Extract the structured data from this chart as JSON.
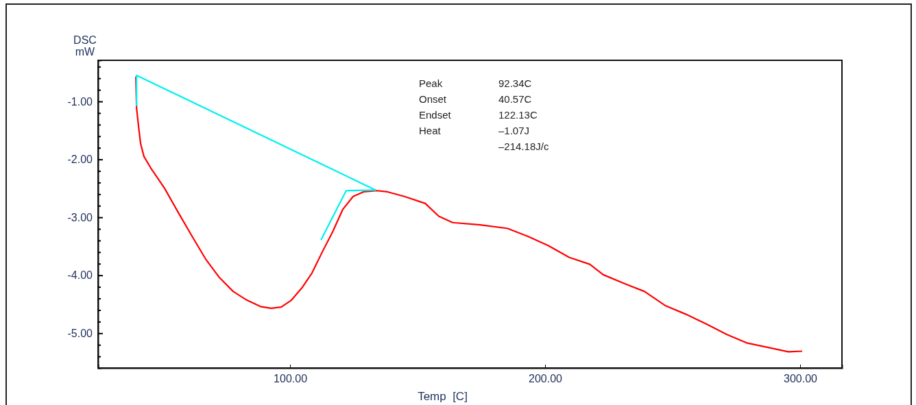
{
  "chart_data": {
    "type": "line",
    "xlabel": "Temp  [C]",
    "ylabel": "DSC\nmW",
    "xlim": [
      24.7,
      316.4
    ],
    "ylim": [
      -5.6,
      -0.29
    ],
    "xticks": [
      {
        "value": 100,
        "label": "100.00"
      },
      {
        "value": 200,
        "label": "200.00"
      },
      {
        "value": 300,
        "label": "300.00"
      }
    ],
    "yticks": [
      {
        "value": -0.4,
        "label": null
      },
      {
        "value": -0.6,
        "label": null
      },
      {
        "value": -0.8,
        "label": null
      },
      {
        "value": -1,
        "label": "-1.00"
      },
      {
        "value": -1.2,
        "label": null
      },
      {
        "value": -1.4,
        "label": null
      },
      {
        "value": -1.6,
        "label": null
      },
      {
        "value": -1.8,
        "label": null
      },
      {
        "value": -2,
        "label": "-2.00"
      },
      {
        "value": -2.2,
        "label": null
      },
      {
        "value": -2.4,
        "label": null
      },
      {
        "value": -2.6,
        "label": null
      },
      {
        "value": -2.8,
        "label": null
      },
      {
        "value": -3,
        "label": "-3.00"
      },
      {
        "value": -3.2,
        "label": null
      },
      {
        "value": -3.4,
        "label": null
      },
      {
        "value": -3.6,
        "label": null
      },
      {
        "value": -3.8,
        "label": null
      },
      {
        "value": -4,
        "label": "-4.00"
      },
      {
        "value": -4.2,
        "label": null
      },
      {
        "value": -4.4,
        "label": null
      },
      {
        "value": -4.6,
        "label": null
      },
      {
        "value": -4.8,
        "label": null
      },
      {
        "value": -5,
        "label": "-5.00"
      },
      {
        "value": -5.2,
        "label": null
      },
      {
        "value": -5.4,
        "label": null
      }
    ],
    "annotations": [
      "Peak",
      "Onset",
      "Endset",
      "Heat",
      "92.34C",
      "40.57C",
      "122.13C",
      "–1.07J",
      "–214.18J/c"
    ],
    "grid": false,
    "marker": "none",
    "line_style": "solid",
    "series": [
      {
        "color": "#ff0000",
        "x": [
          39.5,
          39.6,
          39.8,
          40.6,
          41.4,
          42.7,
          45.4,
          50.8,
          56.2,
          61.6,
          66.9,
          72.3,
          77.7,
          83.1,
          88.4,
          92.5,
          96.5,
          100.5,
          104.6,
          108.6,
          112.6,
          116.7,
          120.7,
          124.7,
          128.8,
          134.1,
          138.2,
          144.9,
          153.0,
          158.3,
          163.7,
          174.5,
          185.2,
          193.3,
          201.3,
          209.4,
          217.5,
          222.8,
          230.9,
          239.0,
          247.0,
          255.1,
          263.2,
          271.2,
          279.3,
          284.7,
          290.1,
          295.4,
          300.8
        ],
        "values": [
          -0.57,
          -0.75,
          -1.11,
          -1.44,
          -1.73,
          -1.95,
          -2.15,
          -2.5,
          -2.92,
          -3.33,
          -3.72,
          -4.04,
          -4.28,
          -4.43,
          -4.54,
          -4.57,
          -4.55,
          -4.43,
          -4.22,
          -3.96,
          -3.6,
          -3.25,
          -2.86,
          -2.64,
          -2.56,
          -2.54,
          -2.56,
          -2.64,
          -2.76,
          -2.98,
          -3.09,
          -3.13,
          -3.19,
          -3.33,
          -3.49,
          -3.69,
          -3.81,
          -3.99,
          -4.14,
          -4.28,
          -4.52,
          -4.67,
          -4.84,
          -5.02,
          -5.17,
          -5.22,
          -5.27,
          -5.32,
          -5.31
        ]
      },
      {
        "color": "#00f0f0",
        "x": [
          39.8,
          39.8,
          133.6
        ],
        "values": [
          -1.08,
          -0.55,
          -2.53
        ]
      },
      {
        "color": "#00f0f0",
        "x": [
          112.1,
          122.0,
          133.6
        ],
        "values": [
          -3.39,
          -2.54,
          -2.53
        ]
      }
    ]
  }
}
